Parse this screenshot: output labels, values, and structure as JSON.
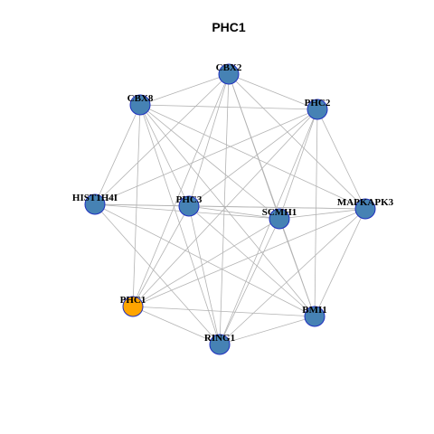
{
  "title": "PHC1",
  "colors": {
    "node_default": "#4682b4",
    "node_highlight": "#ffa500",
    "node_border": "#1f2fbf",
    "edge": "#b3b3b3"
  },
  "nodes": [
    {
      "id": "CBX2",
      "label": "CBX2",
      "highlight": false
    },
    {
      "id": "CBX8",
      "label": "CBX8",
      "highlight": false
    },
    {
      "id": "PHC2",
      "label": "PHC2",
      "highlight": false
    },
    {
      "id": "HIST1H4I",
      "label": "HIST1H4I",
      "highlight": false
    },
    {
      "id": "PHC3",
      "label": "PHC3",
      "highlight": false
    },
    {
      "id": "SCMH1",
      "label": "SCMH1",
      "highlight": false
    },
    {
      "id": "MAPKAPK3",
      "label": "MAPKAPK3",
      "highlight": false
    },
    {
      "id": "PHC1",
      "label": "PHC1",
      "highlight": true
    },
    {
      "id": "BMI1",
      "label": "BMI1",
      "highlight": false
    },
    {
      "id": "RING1",
      "label": "RING1",
      "highlight": false
    }
  ],
  "edges": [
    [
      "CBX2",
      "CBX8"
    ],
    [
      "CBX2",
      "PHC2"
    ],
    [
      "CBX2",
      "HIST1H4I"
    ],
    [
      "CBX2",
      "PHC3"
    ],
    [
      "CBX2",
      "SCMH1"
    ],
    [
      "CBX2",
      "MAPKAPK3"
    ],
    [
      "CBX2",
      "PHC1"
    ],
    [
      "CBX2",
      "BMI1"
    ],
    [
      "CBX2",
      "RING1"
    ],
    [
      "CBX8",
      "PHC2"
    ],
    [
      "CBX8",
      "HIST1H4I"
    ],
    [
      "CBX8",
      "PHC3"
    ],
    [
      "CBX8",
      "SCMH1"
    ],
    [
      "CBX8",
      "MAPKAPK3"
    ],
    [
      "CBX8",
      "PHC1"
    ],
    [
      "CBX8",
      "BMI1"
    ],
    [
      "CBX8",
      "RING1"
    ],
    [
      "PHC2",
      "PHC3"
    ],
    [
      "PHC2",
      "SCMH1"
    ],
    [
      "PHC2",
      "MAPKAPK3"
    ],
    [
      "PHC2",
      "PHC1"
    ],
    [
      "PHC2",
      "BMI1"
    ],
    [
      "PHC2",
      "RING1"
    ],
    [
      "PHC2",
      "HIST1H4I"
    ],
    [
      "HIST1H4I",
      "PHC3"
    ],
    [
      "HIST1H4I",
      "SCMH1"
    ],
    [
      "HIST1H4I",
      "MAPKAPK3"
    ],
    [
      "HIST1H4I",
      "BMI1"
    ],
    [
      "HIST1H4I",
      "RING1"
    ],
    [
      "PHC3",
      "SCMH1"
    ],
    [
      "PHC3",
      "MAPKAPK3"
    ],
    [
      "PHC3",
      "BMI1"
    ],
    [
      "PHC3",
      "RING1"
    ],
    [
      "PHC3",
      "PHC1"
    ],
    [
      "SCMH1",
      "MAPKAPK3"
    ],
    [
      "SCMH1",
      "PHC1"
    ],
    [
      "SCMH1",
      "BMI1"
    ],
    [
      "SCMH1",
      "RING1"
    ],
    [
      "MAPKAPK3",
      "PHC1"
    ],
    [
      "MAPKAPK3",
      "BMI1"
    ],
    [
      "MAPKAPK3",
      "RING1"
    ],
    [
      "PHC1",
      "BMI1"
    ],
    [
      "PHC1",
      "RING1"
    ],
    [
      "BMI1",
      "RING1"
    ]
  ]
}
